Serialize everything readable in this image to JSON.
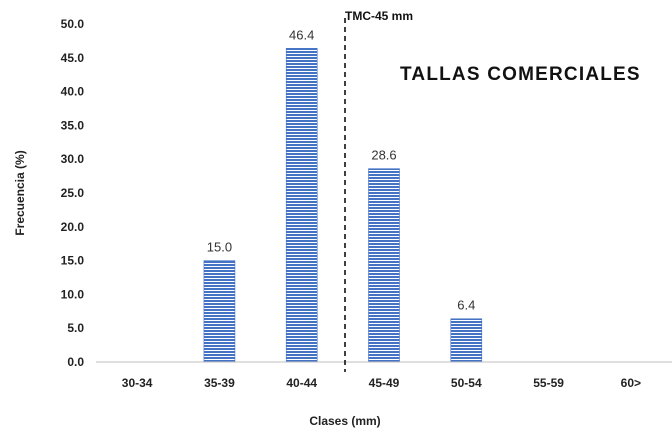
{
  "chart_data": {
    "type": "bar",
    "categories": [
      "30-34",
      "35-39",
      "40-44",
      "45-49",
      "50-54",
      "55-59",
      "60>"
    ],
    "values": [
      0,
      15.0,
      46.4,
      28.6,
      6.4,
      0,
      0
    ],
    "data_labels": [
      "",
      "15.0",
      "46.4",
      "28.6",
      "6.4",
      "",
      ""
    ],
    "xlabel": "Clases (mm)",
    "ylabel": "Frecuencia (%)",
    "ylim": [
      0,
      50
    ],
    "yticks": [
      "0.0",
      "5.0",
      "10.0",
      "15.0",
      "20.0",
      "25.0",
      "30.0",
      "35.0",
      "40.0",
      "45.0",
      "50.0"
    ],
    "grid": false,
    "legend": "none",
    "bar_color": "#4472c4",
    "annotations": {
      "marker_label": "TMC-45 mm",
      "region_label": "TALLAS COMERCIALES"
    }
  }
}
